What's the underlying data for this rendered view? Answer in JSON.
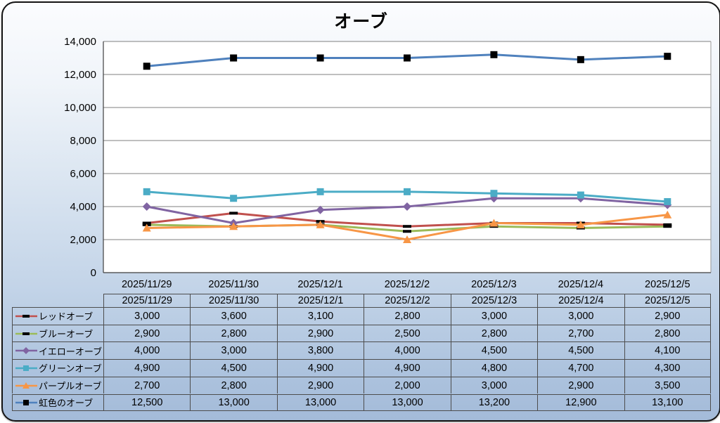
{
  "chart_data": {
    "type": "line",
    "title": "オーブ",
    "categories": [
      "2025/11/29",
      "2025/11/30",
      "2025/12/1",
      "2025/12/2",
      "2025/12/3",
      "2025/12/4",
      "2025/12/5"
    ],
    "series": [
      {
        "name": "レッドオーブ",
        "color": "#C0504D",
        "marker": "dash",
        "marker_color": "#000000",
        "values": [
          3000,
          3600,
          3100,
          2800,
          3000,
          3000,
          2900
        ]
      },
      {
        "name": "ブルーオーブ",
        "color": "#9BBB59",
        "marker": "dash",
        "marker_color": "#000000",
        "values": [
          2900,
          2800,
          2900,
          2500,
          2800,
          2700,
          2800
        ]
      },
      {
        "name": "イエローオーブ",
        "color": "#8064A2",
        "marker": "diamond",
        "marker_color": "#8064A2",
        "values": [
          4000,
          3000,
          3800,
          4000,
          4500,
          4500,
          4100
        ]
      },
      {
        "name": "グリーンオーブ",
        "color": "#4BACC6",
        "marker": "square",
        "marker_color": "#4BACC6",
        "values": [
          4900,
          4500,
          4900,
          4900,
          4800,
          4700,
          4300
        ]
      },
      {
        "name": "パープルオーブ",
        "color": "#F79646",
        "marker": "triangle",
        "marker_color": "#F79646",
        "values": [
          2700,
          2800,
          2900,
          2000,
          3000,
          2900,
          3500
        ]
      },
      {
        "name": "虹色のオーブ",
        "color": "#4F81BD",
        "marker": "square",
        "marker_color": "#000000",
        "values": [
          12500,
          13000,
          13000,
          13000,
          13200,
          12900,
          13100
        ]
      }
    ],
    "ylim": [
      0,
      14000
    ],
    "ytick_step": 2000,
    "y_ticks": [
      "0",
      "2,000",
      "4,000",
      "6,000",
      "8,000",
      "10,000",
      "12,000",
      "14,000"
    ],
    "grid": true,
    "legend_position": "data-table-left",
    "data_table": {
      "shown": true,
      "header": [
        "2025/11/29",
        "2025/11/30",
        "2025/12/1",
        "2025/12/2",
        "2025/12/3",
        "2025/12/4",
        "2025/12/5"
      ],
      "rows": [
        {
          "label": "レッドオーブ",
          "values": [
            "3,000",
            "3,600",
            "3,100",
            "2,800",
            "3,000",
            "3,000",
            "2,900"
          ]
        },
        {
          "label": "ブルーオーブ",
          "values": [
            "2,900",
            "2,800",
            "2,900",
            "2,500",
            "2,800",
            "2,700",
            "2,800"
          ]
        },
        {
          "label": "イエローオーブ",
          "values": [
            "4,000",
            "3,000",
            "3,800",
            "4,000",
            "4,500",
            "4,500",
            "4,100"
          ]
        },
        {
          "label": "グリーンオーブ",
          "values": [
            "4,900",
            "4,500",
            "4,900",
            "4,900",
            "4,800",
            "4,700",
            "4,300"
          ]
        },
        {
          "label": "パープルオーブ",
          "values": [
            "2,700",
            "2,800",
            "2,900",
            "2,000",
            "3,000",
            "2,900",
            "3,500"
          ]
        },
        {
          "label": "虹色のオーブ",
          "values": [
            "12,500",
            "13,000",
            "13,000",
            "13,000",
            "13,200",
            "12,900",
            "13,100"
          ]
        }
      ]
    }
  }
}
